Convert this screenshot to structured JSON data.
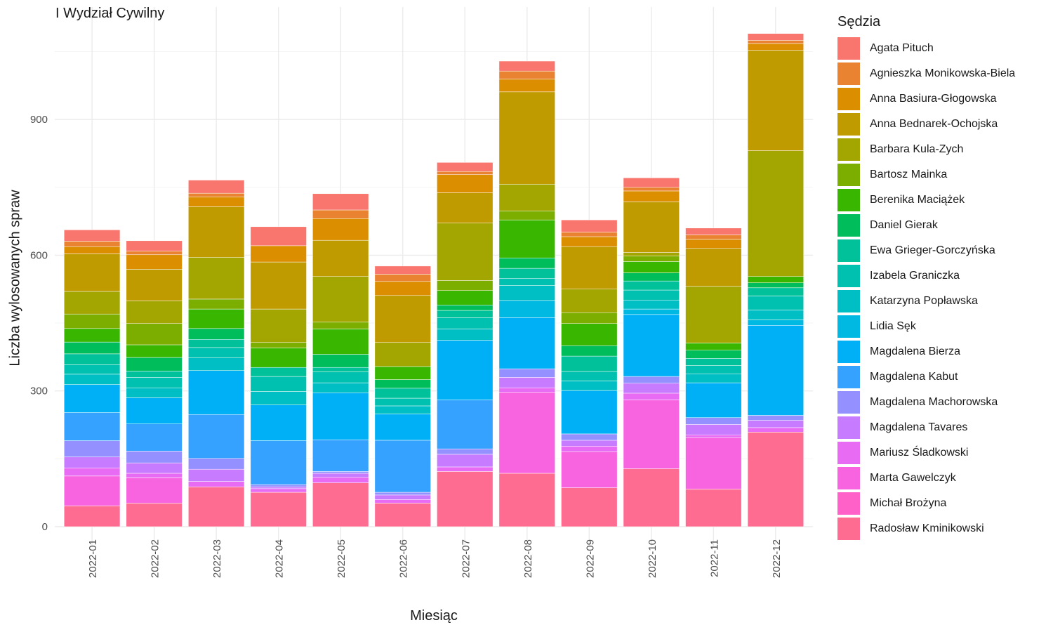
{
  "chart_data": {
    "type": "bar",
    "stacked": true,
    "title": "I Wydział Cywilny",
    "xlabel": "Miesiąc",
    "ylabel": "Liczba wylosowanych spraw",
    "ylim": [
      0,
      1100
    ],
    "yticks": [
      0,
      300,
      600,
      900
    ],
    "grid": true,
    "legend_title": "Sędzia",
    "legend_position": "right",
    "categories": [
      "2022-01",
      "2022-02",
      "2022-03",
      "2022-04",
      "2022-05",
      "2022-06",
      "2022-07",
      "2022-08",
      "2022-09",
      "2022-10",
      "2022-11",
      "2022-12"
    ],
    "series": [
      {
        "name": "Radosław Kminikowski",
        "color": "#FF6C91",
        "values": [
          46,
          52,
          88,
          76,
          97,
          52,
          122,
          118,
          86,
          128,
          83,
          209
        ]
      },
      {
        "name": "Michał Brożyna",
        "color": "#FF61C9",
        "values": [
          0,
          0,
          0,
          0,
          0,
          0,
          0,
          0,
          0,
          0,
          0,
          0
        ]
      },
      {
        "name": "Marta Gawelczyk",
        "color": "#F863DF",
        "values": [
          66,
          56,
          0,
          0,
          0,
          0,
          0,
          179,
          80,
          152,
          114,
          0
        ]
      },
      {
        "name": "Mariusz Śladkowski",
        "color": "#E76BF3",
        "values": [
          18,
          10,
          12,
          8,
          12,
          8,
          10,
          10,
          12,
          15,
          6,
          10
        ]
      },
      {
        "name": "Magdalena Tavares",
        "color": "#C77CFF",
        "values": [
          24,
          23,
          27,
          4,
          9,
          10,
          28,
          23,
          13,
          22,
          23,
          16
        ]
      },
      {
        "name": "Magdalena Machorowska",
        "color": "#9590FF",
        "values": [
          36,
          26,
          24,
          5,
          4,
          6,
          12,
          19,
          14,
          15,
          15,
          11
        ]
      },
      {
        "name": "Magdalena Kabut",
        "color": "#35A2FF",
        "values": [
          62,
          60,
          97,
          97,
          70,
          115,
          108,
          0,
          0,
          0,
          0,
          0
        ]
      },
      {
        "name": "Magdalena Bierza",
        "color": "#00B0F6",
        "values": [
          62,
          58,
          97,
          79,
          104,
          58,
          132,
          113,
          96,
          137,
          77,
          199
        ]
      },
      {
        "name": "Lidia Sęk",
        "color": "#00B9E3",
        "values": [
          0,
          0,
          0,
          0,
          0,
          0,
          0,
          38,
          0,
          12,
          0,
          12
        ]
      },
      {
        "name": "Katarzyna Popławska",
        "color": "#00BFC4",
        "values": [
          23,
          22,
          28,
          30,
          22,
          18,
          25,
          33,
          21,
          20,
          20,
          22
        ]
      },
      {
        "name": "Izabela Graniczka",
        "color": "#00C0AF",
        "values": [
          21,
          23,
          23,
          33,
          24,
          17,
          25,
          16,
          21,
          22,
          18,
          31
        ]
      },
      {
        "name": "Ewa Grieger-Gorczyńska",
        "color": "#00C19A",
        "values": [
          24,
          14,
          18,
          20,
          10,
          22,
          16,
          22,
          34,
          20,
          16,
          18
        ]
      },
      {
        "name": "Daniel Gierak",
        "color": "#00BD5C",
        "values": [
          26,
          30,
          24,
          0,
          29,
          19,
          12,
          23,
          23,
          18,
          18,
          11
        ]
      },
      {
        "name": "Berenika Maciążek",
        "color": "#39B600",
        "values": [
          30,
          28,
          43,
          43,
          56,
          29,
          32,
          84,
          49,
          25,
          16,
          14
        ]
      },
      {
        "name": "Bartosz Mainka",
        "color": "#7CAE00",
        "values": [
          32,
          47,
          22,
          12,
          15,
          0,
          22,
          20,
          24,
          12,
          0,
          0
        ]
      },
      {
        "name": "Barbara Kula-Zych",
        "color": "#A3A500",
        "values": [
          50,
          50,
          92,
          74,
          101,
          53,
          127,
          59,
          52,
          8,
          125,
          278
        ]
      },
      {
        "name": "Anna Bednarek-Ochojska",
        "color": "#C09B00",
        "values": [
          83,
          70,
          112,
          104,
          80,
          104,
          67,
          204,
          94,
          112,
          84,
          222
        ]
      },
      {
        "name": "Anna Basiura-Głogowska",
        "color": "#DB8E00",
        "values": [
          16,
          32,
          22,
          36,
          48,
          31,
          40,
          28,
          22,
          24,
          20,
          15
        ]
      },
      {
        "name": "Agnieszka Monikowska-Biela",
        "color": "#EA8331",
        "values": [
          12,
          8,
          8,
          0,
          19,
          16,
          7,
          18,
          10,
          8,
          10,
          7
        ]
      },
      {
        "name": "Agata Pituch",
        "color": "#F8766D",
        "values": [
          25,
          23,
          29,
          42,
          36,
          18,
          20,
          22,
          27,
          21,
          15,
          15
        ]
      }
    ]
  }
}
